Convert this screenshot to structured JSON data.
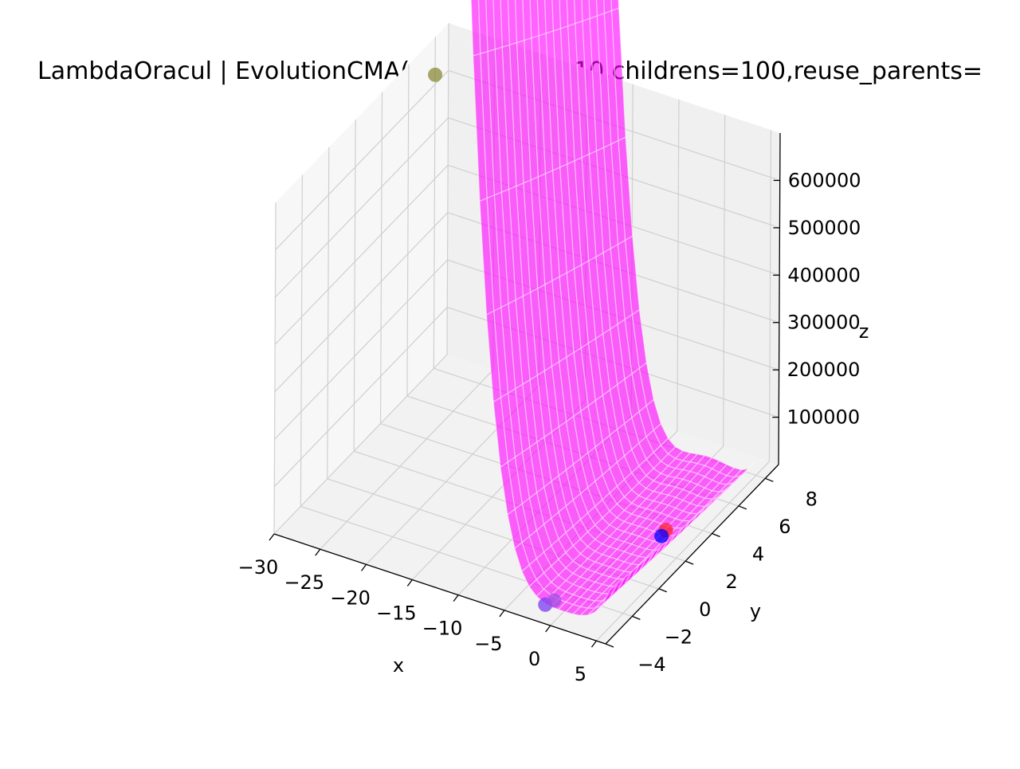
{
  "chart_data": {
    "type": "surface3d",
    "title": "LambdaOracul | EvolutionCMA(200,parents=10,childrens=100,reuse_parents=",
    "xlabel": "x",
    "ylabel": "y",
    "zlabel": "z",
    "xlim": [
      -30,
      6
    ],
    "ylim": [
      -4,
      9
    ],
    "zlim": [
      0,
      700000
    ],
    "x_ticks": [
      -30,
      -25,
      -20,
      -15,
      -10,
      -5,
      0,
      5
    ],
    "x_tick_labels": [
      "−30",
      "−25",
      "−20",
      "−15",
      "−10",
      "−5",
      "0",
      "5"
    ],
    "y_ticks": [
      -4,
      -2,
      0,
      2,
      4,
      6,
      8
    ],
    "y_tick_labels": [
      "−4",
      "−2",
      "0",
      "2",
      "4",
      "6",
      "8"
    ],
    "z_ticks": [
      100000,
      200000,
      300000,
      400000,
      500000,
      600000
    ],
    "z_tick_labels": [
      "100000",
      "200000",
      "300000",
      "400000",
      "500000",
      "600000"
    ],
    "surface": {
      "function": "rosenbrock",
      "x_range": [
        -30,
        5
      ],
      "y_range": [
        -3,
        8
      ],
      "colormap": "spring",
      "alpha": 0.6
    },
    "points": [
      {
        "x": -30,
        "y": 8,
        "z": 620000,
        "color": "#8a8a3a"
      },
      {
        "x": -2,
        "y": -3,
        "z": 2000,
        "color": "#7a3cf0"
      },
      {
        "x": -1.6,
        "y": -2.6,
        "z": 2000,
        "color": "#a050e0"
      },
      {
        "x": 2,
        "y": 3.3,
        "z": 2000,
        "color": "#ff2030"
      },
      {
        "x": 2.1,
        "y": 2.9,
        "z": 1500,
        "color": "#0000ff"
      }
    ],
    "grid": true,
    "panes": true
  }
}
